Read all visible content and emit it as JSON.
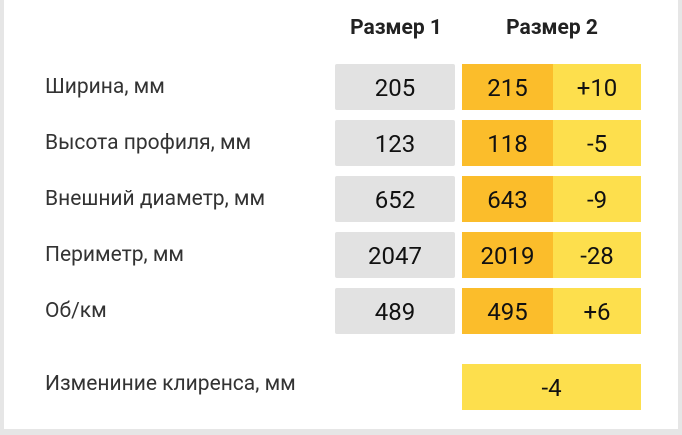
{
  "header": {
    "col1": "Размер 1",
    "col2": "Размер 2"
  },
  "rows": [
    {
      "label": "Ширина, мм",
      "size1": "205",
      "size2": "215",
      "diff": "+10"
    },
    {
      "label": "Высота профиля, мм",
      "size1": "123",
      "size2": "118",
      "diff": "-5"
    },
    {
      "label": "Внешний диаметр, мм",
      "size1": "652",
      "size2": "643",
      "diff": "-9"
    },
    {
      "label": "Периметр, мм",
      "size1": "2047",
      "size2": "2019",
      "diff": "-28"
    },
    {
      "label": "Об/км",
      "size1": "489",
      "size2": "495",
      "diff": "+6"
    }
  ],
  "clearance": {
    "label": "Измениние клиренса, мм",
    "value": "-4"
  }
}
